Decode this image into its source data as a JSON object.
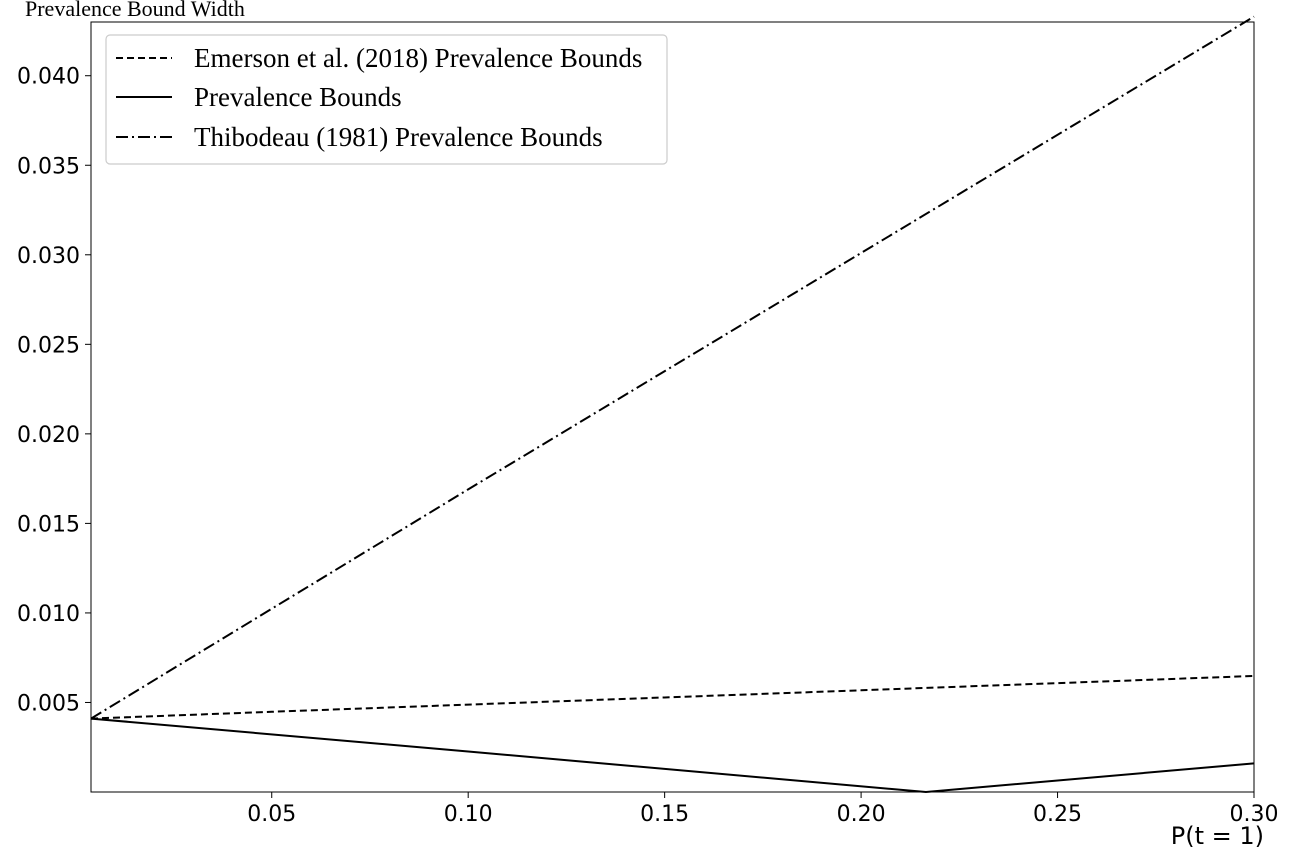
{
  "chart_data": {
    "type": "line",
    "title": "",
    "ylabel": "Prevalence Bound Width",
    "xlabel": "P(t = 1)",
    "xlim": [
      0.004,
      0.3
    ],
    "ylim": [
      0.0,
      0.043
    ],
    "x_ticks": [
      0.05,
      0.1,
      0.15,
      0.2,
      0.25,
      0.3
    ],
    "x_tick_labels": [
      "0.05",
      "0.10",
      "0.15",
      "0.20",
      "0.25",
      "0.30"
    ],
    "y_ticks": [
      0.005,
      0.01,
      0.015,
      0.02,
      0.025,
      0.03,
      0.035,
      0.04
    ],
    "y_tick_labels": [
      "0.005",
      "0.010",
      "0.015",
      "0.020",
      "0.025",
      "0.030",
      "0.035",
      "0.040"
    ],
    "grid": false,
    "legend_position": "top-left",
    "series": [
      {
        "name": "Emerson et al. (2018) Prevalence Bounds",
        "style": "dashed",
        "color": "#000000",
        "x": [
          0.004,
          0.05,
          0.1,
          0.15,
          0.2,
          0.25,
          0.3
        ],
        "y": [
          0.0041,
          0.00448,
          0.00488,
          0.00528,
          0.00568,
          0.00608,
          0.00648
        ]
      },
      {
        "name": "Prevalence Bounds",
        "style": "solid",
        "color": "#000000",
        "x": [
          0.004,
          0.1,
          0.2165,
          0.3
        ],
        "y": [
          0.0041,
          0.00226,
          0.0,
          0.0016
        ]
      },
      {
        "name": "Thibodeau (1981) Prevalence Bounds",
        "style": "dashdot",
        "color": "#000000",
        "x": [
          0.004,
          0.1,
          0.2,
          0.3
        ],
        "y": [
          0.0041,
          0.0169,
          0.0301,
          0.0433
        ]
      }
    ]
  }
}
